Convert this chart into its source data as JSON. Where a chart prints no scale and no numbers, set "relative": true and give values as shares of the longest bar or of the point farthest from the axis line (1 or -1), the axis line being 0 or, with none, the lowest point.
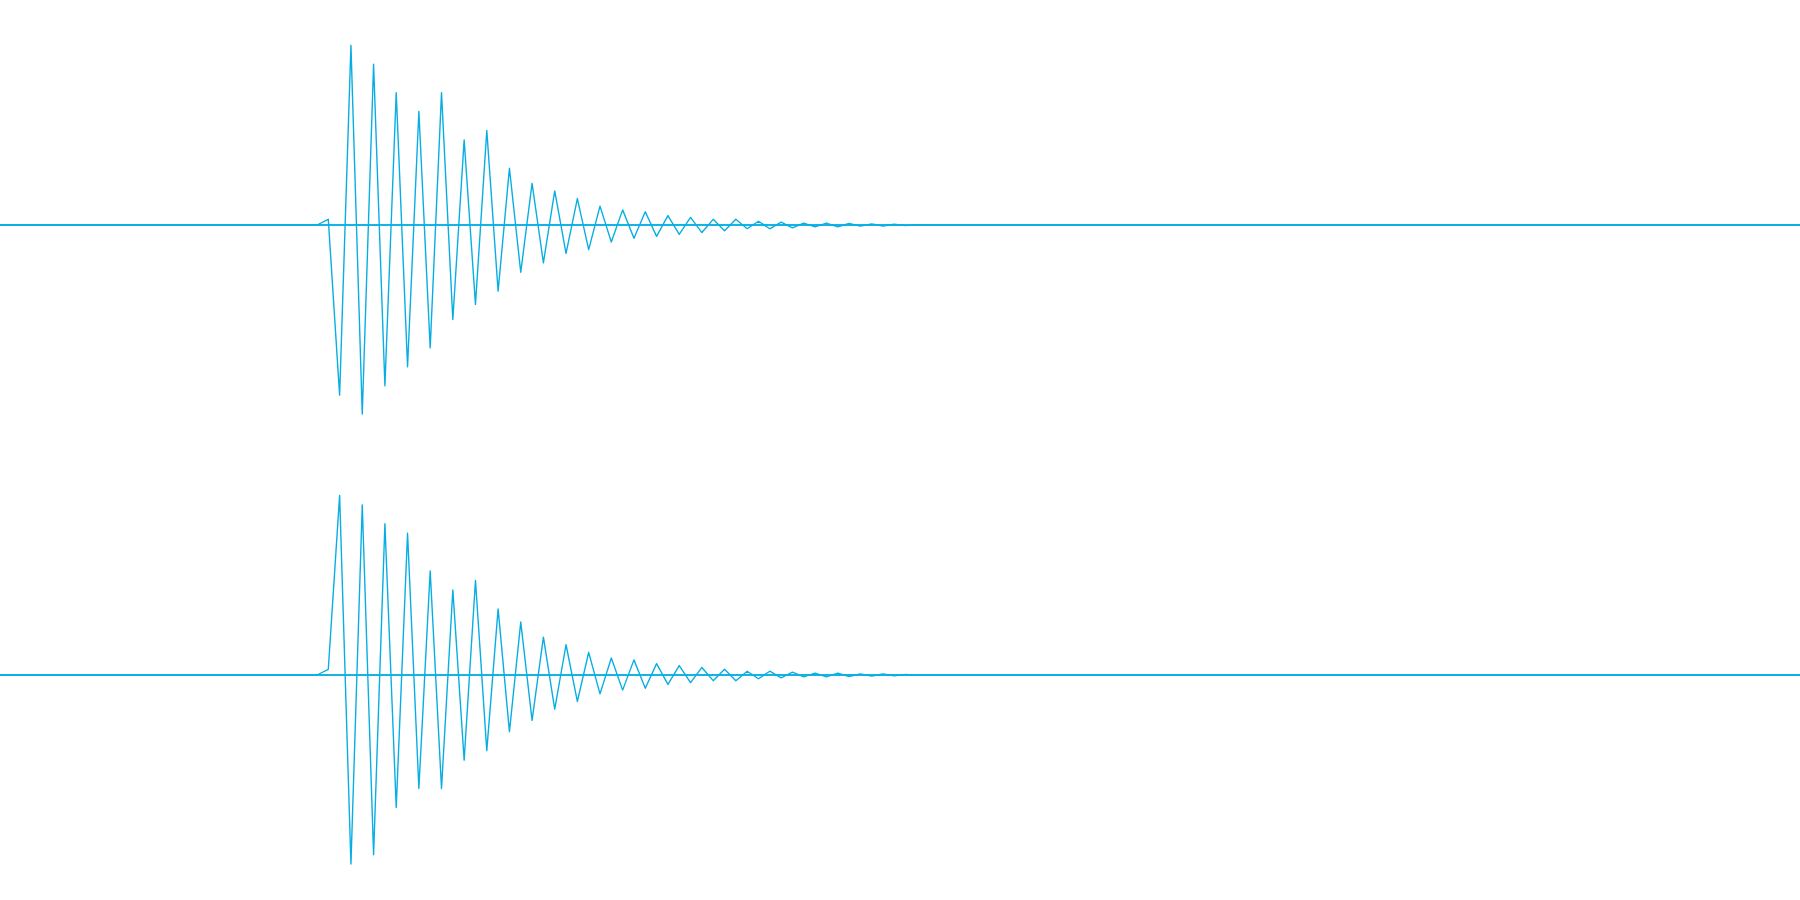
{
  "chart_data": [
    {
      "type": "line",
      "relative": true,
      "color": "#07aee3",
      "ref_lines": [
        {
          "axis": "y",
          "value": 0,
          "color": "#07aee3"
        }
      ],
      "categories": [
        null,
        null,
        null,
        null,
        null,
        null,
        null,
        null,
        null,
        null,
        null,
        null,
        null,
        null,
        null,
        null,
        null,
        null,
        null,
        null,
        null,
        null,
        null,
        null,
        null,
        null,
        null,
        null,
        null,
        null,
        null,
        null,
        null,
        null,
        null,
        null,
        null,
        null,
        null,
        null,
        null,
        null,
        null,
        null,
        null,
        null,
        null,
        null,
        null,
        null,
        null,
        null,
        null,
        null,
        null,
        null,
        null,
        null,
        null,
        null,
        null,
        null,
        null,
        null,
        null,
        null,
        null,
        null,
        null,
        null,
        null,
        null,
        null,
        null,
        null,
        null,
        null,
        null,
        null,
        null,
        null,
        null,
        null,
        null,
        null,
        null,
        null,
        null,
        null,
        null,
        null,
        null,
        null,
        null,
        null,
        null,
        null,
        null,
        null,
        null,
        null,
        null,
        null,
        null,
        null,
        null,
        null,
        null,
        null,
        null,
        null,
        null,
        null,
        null,
        null,
        null,
        null,
        null,
        null,
        null,
        null,
        null,
        null,
        null,
        null,
        null,
        null,
        null,
        null,
        null,
        null,
        null,
        null,
        null,
        null,
        null,
        null,
        null,
        null,
        null,
        null,
        null,
        null,
        null,
        null,
        null,
        null,
        null,
        null,
        null,
        null,
        null,
        null,
        null,
        null,
        null,
        null,
        null,
        null,
        null
      ],
      "values": [
        0,
        0,
        0,
        0,
        0,
        0,
        0,
        0,
        0,
        0,
        0,
        0,
        0,
        0,
        0,
        0,
        0,
        0,
        0,
        0,
        0,
        0,
        0,
        0,
        0,
        0,
        0,
        0,
        0,
        0.03,
        -0.9,
        0.95,
        -1,
        0.85,
        -0.85,
        0.7,
        -0.75,
        0.6,
        -0.65,
        0.7,
        -0.5,
        0.45,
        -0.42,
        0.5,
        -0.35,
        0.3,
        -0.25,
        0.22,
        -0.2,
        0.18,
        -0.15,
        0.14,
        -0.13,
        0.1,
        -0.09,
        0.08,
        -0.07,
        0.07,
        -0.06,
        0.05,
        -0.05,
        0.04,
        -0.04,
        0.03,
        -0.03,
        0.03,
        -0.02,
        0.02,
        -0.02,
        0.015,
        -0.015,
        0.01,
        -0.01,
        0.01,
        -0.01,
        0.008,
        -0.006,
        0.005,
        -0.005,
        0.004,
        -0.003,
        0.002,
        0,
        0,
        0,
        0,
        0,
        0,
        0,
        0,
        0,
        0,
        0,
        0,
        0,
        0,
        0,
        0,
        0,
        0,
        0,
        0,
        0,
        0,
        0,
        0,
        0,
        0,
        0,
        0,
        0,
        0,
        0,
        0,
        0,
        0,
        0,
        0,
        0,
        0,
        0,
        0,
        0,
        0,
        0,
        0,
        0,
        0,
        0,
        0,
        0,
        0,
        0,
        0,
        0,
        0,
        0,
        0,
        0,
        0,
        0,
        0,
        0,
        0,
        0,
        0,
        0,
        0,
        0,
        0,
        0,
        0,
        0,
        0,
        0,
        0,
        0,
        0,
        0,
        0
      ]
    },
    {
      "type": "line",
      "relative": true,
      "color": "#07aee3",
      "ref_lines": [
        {
          "axis": "y",
          "value": 0,
          "color": "#07aee3"
        }
      ],
      "categories": [
        null,
        null,
        null,
        null,
        null,
        null,
        null,
        null,
        null,
        null,
        null,
        null,
        null,
        null,
        null,
        null,
        null,
        null,
        null,
        null,
        null,
        null,
        null,
        null,
        null,
        null,
        null,
        null,
        null,
        null,
        null,
        null,
        null,
        null,
        null,
        null,
        null,
        null,
        null,
        null,
        null,
        null,
        null,
        null,
        null,
        null,
        null,
        null,
        null,
        null,
        null,
        null,
        null,
        null,
        null,
        null,
        null,
        null,
        null,
        null,
        null,
        null,
        null,
        null,
        null,
        null,
        null,
        null,
        null,
        null,
        null,
        null,
        null,
        null,
        null,
        null,
        null,
        null,
        null,
        null,
        null,
        null,
        null,
        null,
        null,
        null,
        null,
        null,
        null,
        null,
        null,
        null,
        null,
        null,
        null,
        null,
        null,
        null,
        null,
        null,
        null,
        null,
        null,
        null,
        null,
        null,
        null,
        null,
        null,
        null,
        null,
        null,
        null,
        null,
        null,
        null,
        null,
        null,
        null,
        null,
        null,
        null,
        null,
        null,
        null,
        null,
        null,
        null,
        null,
        null,
        null,
        null,
        null,
        null,
        null,
        null,
        null,
        null,
        null,
        null,
        null,
        null,
        null,
        null,
        null,
        null,
        null,
        null,
        null,
        null,
        null,
        null,
        null,
        null,
        null,
        null,
        null,
        null,
        null,
        null
      ],
      "values": [
        0,
        0,
        0,
        0,
        0,
        0,
        0,
        0,
        0,
        0,
        0,
        0,
        0,
        0,
        0,
        0,
        0,
        0,
        0,
        0,
        0,
        0,
        0,
        0,
        0,
        0,
        0,
        0,
        0,
        0.03,
        0.95,
        -1,
        0.9,
        -0.95,
        0.8,
        -0.7,
        0.75,
        -0.6,
        0.55,
        -0.6,
        0.45,
        -0.45,
        0.5,
        -0.4,
        0.35,
        -0.3,
        0.28,
        -0.24,
        0.2,
        -0.18,
        0.16,
        -0.14,
        0.12,
        -0.1,
        0.09,
        -0.08,
        0.08,
        -0.07,
        0.06,
        -0.05,
        0.05,
        -0.04,
        0.04,
        -0.03,
        0.03,
        -0.03,
        0.02,
        -0.02,
        0.02,
        -0.015,
        0.015,
        -0.01,
        0.01,
        -0.01,
        0.01,
        -0.008,
        0.006,
        -0.005,
        0.005,
        -0.004,
        0.003,
        -0.002,
        0.002,
        0,
        0,
        0,
        0,
        0,
        0,
        0,
        0,
        0,
        0,
        0,
        0,
        0,
        0,
        0,
        0,
        0,
        0,
        0,
        0,
        0,
        0,
        0,
        0,
        0,
        0,
        0,
        0,
        0,
        0,
        0,
        0,
        0,
        0,
        0,
        0,
        0,
        0,
        0,
        0,
        0,
        0,
        0,
        0,
        0,
        0,
        0,
        0,
        0,
        0,
        0,
        0,
        0,
        0,
        0,
        0,
        0,
        0,
        0,
        0,
        0,
        0,
        0,
        0,
        0,
        0,
        0,
        0,
        0,
        0,
        0,
        0,
        0,
        0,
        0,
        0,
        0
      ]
    }
  ]
}
